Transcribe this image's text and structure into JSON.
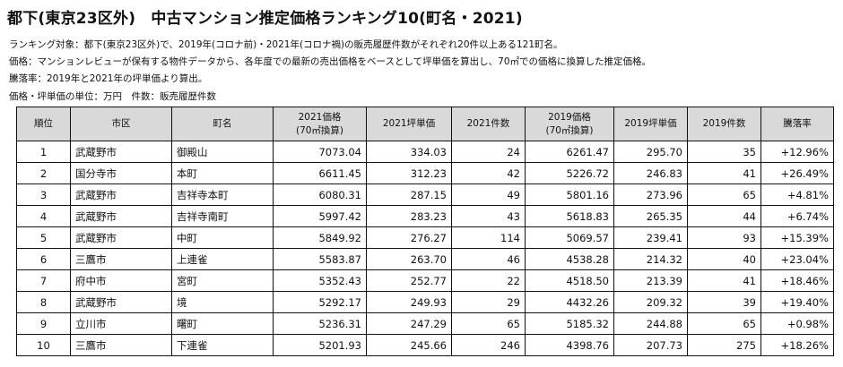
{
  "title": "都下(東京23区外)　中古マンション推定価格ランキング10(町名・2021)",
  "notes": [
    "ランキング対象：都下(東京23区外)で、2019年(コロナ前)・2021年(コロナ禍)の販売履歴件数がそれぞれ20件以上ある121町名。",
    "価格：マンションレビューが保有する物件データから、各年度での最新の売出価格をベースとして坪単価を算出し、70㎡での価格に換算した推定価格。",
    "騰落率：2019年と2021年の坪単価より算出。",
    "価格・坪単価の単位：万円　件数：販売履歴件数"
  ],
  "table": {
    "headers": {
      "rank": "順位",
      "ward": "市区",
      "town": "町名",
      "price2021": "2021価格",
      "price2021_sub": "(70㎡換算)",
      "tsubo2021": "2021坪単価",
      "count2021": "2021件数",
      "price2019": "2019価格",
      "price2019_sub": "(70㎡換算)",
      "tsubo2019": "2019坪単価",
      "count2019": "2019件数",
      "change": "騰落率"
    },
    "rows": [
      {
        "rank": "1",
        "ward": "武蔵野市",
        "town": "御殿山",
        "price2021": "7073.04",
        "tsubo2021": "334.03",
        "count2021": "24",
        "price2019": "6261.47",
        "tsubo2019": "295.70",
        "count2019": "35",
        "change": "+12.96%"
      },
      {
        "rank": "2",
        "ward": "国分寺市",
        "town": "本町",
        "price2021": "6611.45",
        "tsubo2021": "312.23",
        "count2021": "42",
        "price2019": "5226.72",
        "tsubo2019": "246.83",
        "count2019": "41",
        "change": "+26.49%"
      },
      {
        "rank": "3",
        "ward": "武蔵野市",
        "town": "吉祥寺本町",
        "price2021": "6080.31",
        "tsubo2021": "287.15",
        "count2021": "49",
        "price2019": "5801.16",
        "tsubo2019": "273.96",
        "count2019": "65",
        "change": "+4.81%"
      },
      {
        "rank": "4",
        "ward": "武蔵野市",
        "town": "吉祥寺南町",
        "price2021": "5997.42",
        "tsubo2021": "283.23",
        "count2021": "43",
        "price2019": "5618.83",
        "tsubo2019": "265.35",
        "count2019": "44",
        "change": "+6.74%"
      },
      {
        "rank": "5",
        "ward": "武蔵野市",
        "town": "中町",
        "price2021": "5849.92",
        "tsubo2021": "276.27",
        "count2021": "114",
        "price2019": "5069.57",
        "tsubo2019": "239.41",
        "count2019": "93",
        "change": "+15.39%"
      },
      {
        "rank": "6",
        "ward": "三鷹市",
        "town": "上連雀",
        "price2021": "5583.87",
        "tsubo2021": "263.70",
        "count2021": "46",
        "price2019": "4538.28",
        "tsubo2019": "214.32",
        "count2019": "40",
        "change": "+23.04%"
      },
      {
        "rank": "7",
        "ward": "府中市",
        "town": "宮町",
        "price2021": "5352.43",
        "tsubo2021": "252.77",
        "count2021": "22",
        "price2019": "4518.50",
        "tsubo2019": "213.39",
        "count2019": "41",
        "change": "+18.46%"
      },
      {
        "rank": "8",
        "ward": "武蔵野市",
        "town": "境",
        "price2021": "5292.17",
        "tsubo2021": "249.93",
        "count2021": "29",
        "price2019": "4432.26",
        "tsubo2019": "209.32",
        "count2019": "39",
        "change": "+19.40%"
      },
      {
        "rank": "9",
        "ward": "立川市",
        "town": "曙町",
        "price2021": "5236.31",
        "tsubo2021": "247.29",
        "count2021": "65",
        "price2019": "5185.32",
        "tsubo2019": "244.88",
        "count2019": "65",
        "change": "+0.98%"
      },
      {
        "rank": "10",
        "ward": "三鷹市",
        "town": "下連雀",
        "price2021": "5201.93",
        "tsubo2021": "245.66",
        "count2021": "246",
        "price2019": "4398.76",
        "tsubo2019": "207.73",
        "count2019": "275",
        "change": "+18.26%"
      }
    ]
  }
}
